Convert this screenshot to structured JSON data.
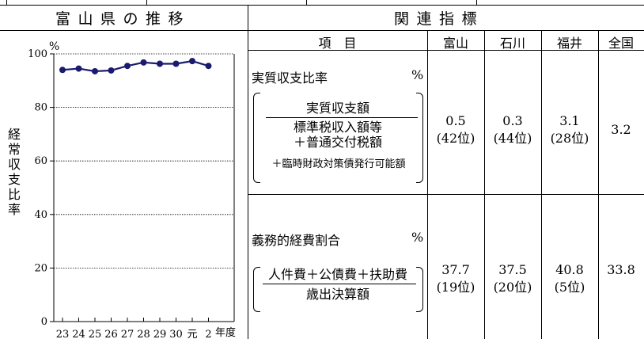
{
  "header": {
    "left_title": "富山県の推移",
    "right_title": "関連指標"
  },
  "table": {
    "col_item": "項　目",
    "cols": [
      "富山",
      "石川",
      "福井",
      "全国"
    ],
    "rows": [
      {
        "name": "実質収支比率",
        "unit": "%",
        "numerator": "実質収支額",
        "denominator_lines": [
          "標準税収入額等",
          "＋普通交付税額",
          "＋臨時財政対策債発行可能額"
        ],
        "values": [
          {
            "v": "0.5",
            "rank": "(42位)"
          },
          {
            "v": "0.3",
            "rank": "(44位)"
          },
          {
            "v": "3.1",
            "rank": "(28位)"
          },
          {
            "v": "3.2",
            "rank": ""
          }
        ]
      },
      {
        "name": "義務的経費割合",
        "unit": "%",
        "numerator": "人件費＋公債費＋扶助費",
        "denominator_lines": [
          "歳出決算額"
        ],
        "values": [
          {
            "v": "37.7",
            "rank": "(19位)"
          },
          {
            "v": "37.5",
            "rank": "(20位)"
          },
          {
            "v": "40.8",
            "rank": "(5位)"
          },
          {
            "v": "33.8",
            "rank": ""
          }
        ]
      }
    ]
  },
  "chart_data": {
    "type": "line",
    "ylabel": "経常収支比率",
    "yunit": "%",
    "xlabel": "年度",
    "ylim": [
      0,
      100
    ],
    "yticks": [
      0,
      20,
      40,
      60,
      80,
      100
    ],
    "grid": true,
    "categories": [
      "23",
      "24",
      "25",
      "26",
      "27",
      "28",
      "29",
      "30",
      "元",
      "2"
    ],
    "series": [
      {
        "values": [
          94.0,
          94.5,
          93.5,
          93.8,
          95.5,
          96.8,
          96.3,
          96.3,
          97.3,
          95.5
        ],
        "color": "#1a1a6e"
      }
    ]
  }
}
